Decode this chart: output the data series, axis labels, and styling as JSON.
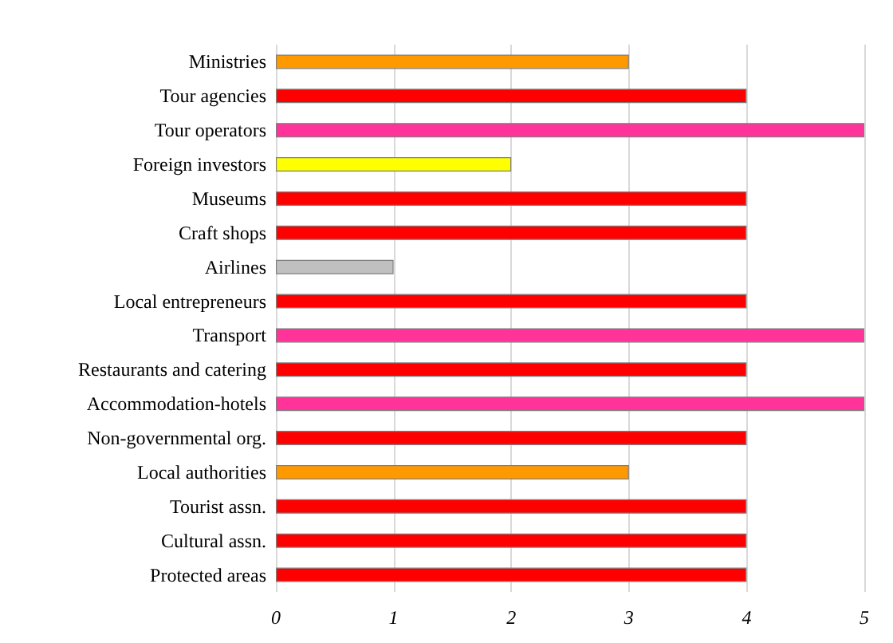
{
  "chart_data": {
    "type": "bar",
    "orientation": "horizontal",
    "categories": [
      "Ministries",
      "Tour agencies",
      "Tour operators",
      "Foreign investors",
      "Museums",
      "Craft shops",
      "Airlines",
      "Local entrepreneurs",
      "Transport",
      "Restaurants and catering",
      "Accommodation-hotels",
      "Non-governmental org.",
      "Local authorities",
      "Tourist assn.",
      "Cultural assn.",
      "Protected areas"
    ],
    "values": [
      3,
      4,
      5,
      2,
      4,
      4,
      1,
      4,
      5,
      4,
      5,
      4,
      3,
      4,
      4,
      4
    ],
    "colors": [
      "#ff9900",
      "#ff0000",
      "#ff3399",
      "#ffff00",
      "#ff0000",
      "#ff0000",
      "#c0c0c0",
      "#ff0000",
      "#ff3399",
      "#ff0000",
      "#ff3399",
      "#ff0000",
      "#ff9900",
      "#ff0000",
      "#ff0000",
      "#ff0000"
    ],
    "xlim": [
      0,
      5
    ],
    "xticks": [
      0,
      1,
      2,
      3,
      4,
      5
    ],
    "grid": "x"
  }
}
